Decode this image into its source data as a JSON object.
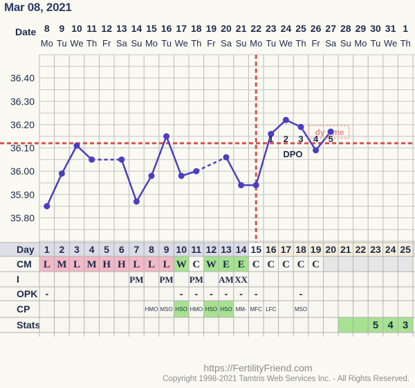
{
  "header": {
    "date": "Mar 08, 2021",
    "row_label": "Date"
  },
  "days": {
    "dates": [
      "8",
      "9",
      "10",
      "11",
      "12",
      "13",
      "14",
      "15",
      "16",
      "17",
      "18",
      "19",
      "20",
      "21",
      "22",
      "23",
      "24",
      "25",
      "26",
      "27",
      "28",
      "29",
      "30",
      "31",
      "1"
    ],
    "weekdays": [
      "Mo",
      "Tu",
      "We",
      "Th",
      "Fr",
      "Sa",
      "Su",
      "Mo",
      "Tu",
      "We",
      "Th",
      "Fr",
      "Sa",
      "Su",
      "Mo",
      "Tu",
      "We",
      "Th",
      "Fr",
      "Sa",
      "Su",
      "Mo",
      "Tu",
      "We",
      "Th"
    ],
    "cycle_days": [
      "1",
      "2",
      "3",
      "4",
      "5",
      "6",
      "7",
      "8",
      "9",
      "10",
      "11",
      "12",
      "13",
      "14",
      "15",
      "16",
      "17",
      "18",
      "19",
      "20",
      "21",
      "22",
      "23",
      "24",
      "25"
    ]
  },
  "chart_data": {
    "type": "line",
    "title": "",
    "xlabel": "",
    "ylabel": "",
    "ylim": [
      35.7,
      36.5
    ],
    "yticks": [
      "35.80",
      "35.90",
      "36.00",
      "36.10",
      "36.20",
      "36.30",
      "36.40"
    ],
    "x": [
      1,
      2,
      3,
      4,
      5,
      6,
      7,
      8,
      9,
      10,
      11,
      12,
      13,
      14,
      15,
      16,
      17,
      18,
      19,
      20
    ],
    "temps": [
      35.85,
      35.99,
      36.11,
      36.05,
      null,
      36.05,
      35.87,
      35.98,
      36.15,
      35.98,
      36.0,
      null,
      36.06,
      35.94,
      35.94,
      36.16,
      36.22,
      36.19,
      36.09,
      36.17
    ],
    "coverline": 36.12,
    "ovulation_day": 15,
    "dpo": [
      "1",
      "2",
      "3",
      "4",
      "5"
    ],
    "dpo_label": "DPO",
    "cover_note": "dy ome",
    "colors": {
      "line": "#4a3fbf",
      "coverline": "#d9534f",
      "ovulation": "#d9534f"
    }
  },
  "rows": {
    "labels": {
      "day": "Day",
      "cm": "CM",
      "i": "I",
      "opk": "OPK",
      "cp": "CP",
      "stats": "Stats"
    },
    "cm": [
      "L",
      "M",
      "L",
      "M",
      "H",
      "H",
      "L",
      "L",
      "L",
      "W",
      "C",
      "W",
      "E",
      "E",
      "C",
      "C",
      "C",
      "C",
      "C",
      "",
      "",
      "",
      "",
      "",
      ""
    ],
    "i": [
      "",
      "",
      "",
      "",
      "",
      "",
      "PM",
      "",
      "PM",
      "",
      "PM",
      "",
      "AM",
      "XX",
      "",
      "",
      "",
      "",
      "",
      "",
      "",
      "",
      "",
      "",
      ""
    ],
    "opk": [
      "-",
      "",
      "",
      "",
      "",
      "",
      "",
      "",
      "",
      "-",
      "-",
      "-",
      "-",
      "-",
      "-",
      "",
      "",
      "-",
      "",
      "",
      "",
      "",
      "",
      "",
      ""
    ],
    "cp": [
      "",
      "",
      "",
      "",
      "",
      "",
      "",
      "HMO",
      "MSO",
      "HSO",
      "HMO",
      "HSO",
      "HSO",
      "MM-",
      "MFC",
      "LFC",
      "",
      "MSO",
      "",
      "",
      "",
      "",
      "",
      "",
      ""
    ],
    "stats": [
      "",
      "",
      "",
      "",
      "",
      "",
      "",
      "",
      "",
      "",
      "",
      "",
      "",
      "",
      "",
      "",
      "",
      "",
      "",
      "",
      "",
      "",
      "5",
      "4",
      "3"
    ]
  },
  "footer": {
    "url": "https://FertilityFriend.com",
    "copyright": "Copyright 1998-2021 Tamtris Web Services Inc. - All Rights Reserved."
  }
}
